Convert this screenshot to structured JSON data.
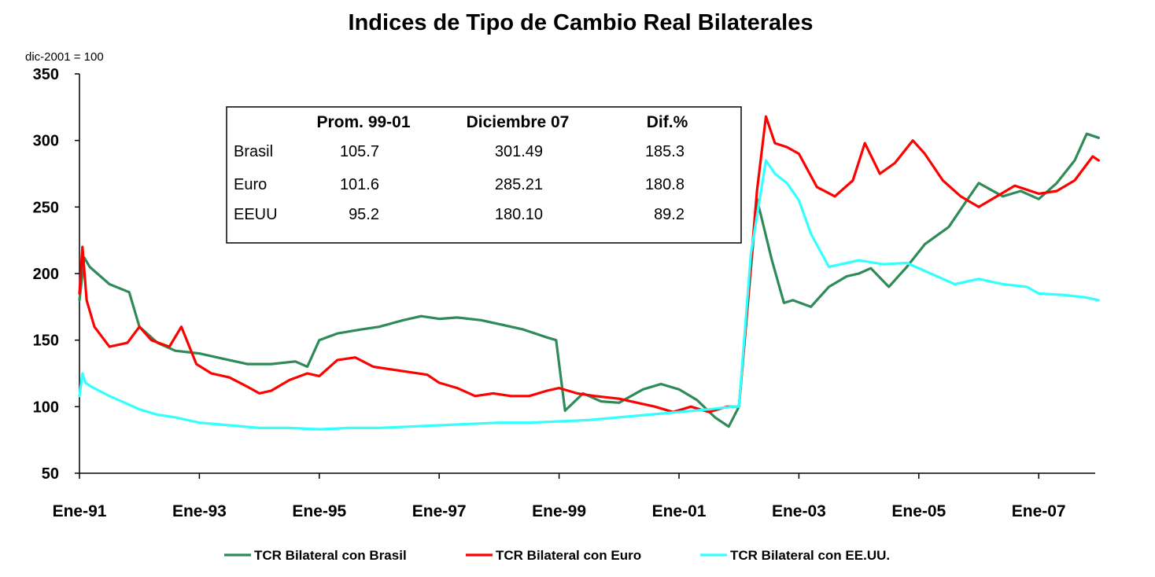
{
  "chart_data": {
    "type": "line",
    "title": "Indices de Tipo de Cambio Real Bilaterales",
    "base_note": "dic-2001 = 100",
    "ylim": [
      50,
      350
    ],
    "y_ticks": [
      "50",
      "100",
      "150",
      "200",
      "250",
      "300",
      "350"
    ],
    "x_ticks": [
      "Ene-91",
      "Ene-93",
      "Ene-95",
      "Ene-97",
      "Ene-99",
      "Ene-01",
      "Ene-03",
      "Ene-05",
      "Ene-07"
    ],
    "x_range_years": [
      1991.0,
      2008.0
    ],
    "colors": {
      "brasil": "#2e8b57",
      "euro": "#ff0000",
      "eeuu": "#33ffff"
    },
    "series": [
      {
        "key": "brasil",
        "name": "TCR Bilateral con Brasil",
        "x": [
          1991.0,
          1991.08,
          1991.17,
          1991.5,
          1991.83,
          1992.0,
          1992.3,
          1992.6,
          1993.0,
          1993.4,
          1993.8,
          1994.2,
          1994.6,
          1994.8,
          1995.0,
          1995.3,
          1995.7,
          1996.0,
          1996.4,
          1996.7,
          1997.0,
          1997.3,
          1997.7,
          1998.0,
          1998.4,
          1998.8,
          1998.95,
          1999.1,
          1999.4,
          1999.7,
          2000.0,
          2000.4,
          2000.7,
          2001.0,
          2001.3,
          2001.6,
          2001.83,
          2002.0,
          2002.3,
          2002.55,
          2002.75,
          2002.9,
          2003.2,
          2003.5,
          2003.8,
          2004.0,
          2004.2,
          2004.5,
          2004.8,
          2005.1,
          2005.5,
          2005.8,
          2006.0,
          2006.4,
          2006.7,
          2007.0,
          2007.3,
          2007.6,
          2007.8,
          2008.0
        ],
        "values": [
          180,
          212,
          205,
          192,
          186,
          160,
          148,
          142,
          140,
          136,
          132,
          132,
          134,
          130,
          150,
          155,
          158,
          160,
          165,
          168,
          166,
          167,
          165,
          162,
          158,
          152,
          150,
          97,
          110,
          104,
          103,
          113,
          117,
          113,
          105,
          92,
          85,
          100,
          256,
          210,
          178,
          180,
          175,
          190,
          198,
          200,
          204,
          190,
          205,
          222,
          235,
          255,
          268,
          258,
          262,
          256,
          268,
          285,
          305,
          302
        ]
      },
      {
        "key": "euro",
        "name": "TCR Bilateral con Euro",
        "x": [
          1991.0,
          1991.05,
          1991.12,
          1991.25,
          1991.5,
          1991.8,
          1992.0,
          1992.2,
          1992.5,
          1992.7,
          1992.95,
          1993.2,
          1993.5,
          1993.8,
          1994.0,
          1994.2,
          1994.5,
          1994.8,
          1995.0,
          1995.3,
          1995.6,
          1995.9,
          1996.2,
          1996.5,
          1996.8,
          1997.0,
          1997.3,
          1997.6,
          1997.9,
          1998.2,
          1998.5,
          1998.8,
          1999.0,
          1999.3,
          1999.6,
          2000.0,
          2000.3,
          2000.6,
          2000.9,
          2001.2,
          2001.5,
          2001.8,
          2002.0,
          2002.15,
          2002.3,
          2002.45,
          2002.6,
          2002.8,
          2003.0,
          2003.3,
          2003.6,
          2003.9,
          2004.1,
          2004.35,
          2004.6,
          2004.9,
          2005.1,
          2005.4,
          2005.7,
          2006.0,
          2006.3,
          2006.6,
          2007.0,
          2007.3,
          2007.6,
          2007.9,
          2008.0
        ],
        "values": [
          185,
          220,
          180,
          160,
          145,
          148,
          160,
          150,
          145,
          160,
          132,
          125,
          122,
          115,
          110,
          112,
          120,
          125,
          123,
          135,
          137,
          130,
          128,
          126,
          124,
          118,
          114,
          108,
          110,
          108,
          108,
          112,
          114,
          110,
          108,
          106,
          103,
          100,
          96,
          100,
          96,
          100,
          100,
          180,
          262,
          318,
          298,
          295,
          290,
          265,
          258,
          270,
          298,
          275,
          283,
          300,
          290,
          270,
          258,
          250,
          258,
          266,
          260,
          262,
          270,
          288,
          285
        ]
      },
      {
        "key": "eeuu",
        "name": "TCR Bilateral con EE.UU.",
        "x": [
          1991.0,
          1991.05,
          1991.1,
          1991.2,
          1991.5,
          1991.8,
          1992.0,
          1992.3,
          1992.6,
          1993.0,
          1993.5,
          1994.0,
          1994.5,
          1995.0,
          1995.5,
          1996.0,
          1996.5,
          1997.0,
          1997.5,
          1998.0,
          1998.5,
          1999.0,
          1999.5,
          2000.0,
          2000.5,
          2001.0,
          2001.5,
          2001.9,
          2002.0,
          2002.2,
          2002.45,
          2002.6,
          2002.8,
          2003.0,
          2003.2,
          2003.5,
          2003.8,
          2004.0,
          2004.4,
          2004.8,
          2005.2,
          2005.6,
          2006.0,
          2006.4,
          2006.8,
          2007.0,
          2007.4,
          2007.8,
          2008.0
        ],
        "values": [
          108,
          125,
          118,
          115,
          108,
          102,
          98,
          94,
          92,
          88,
          86,
          84,
          84,
          83,
          84,
          84,
          85,
          86,
          87,
          88,
          88,
          89,
          90,
          92,
          94,
          96,
          98,
          100,
          100,
          215,
          285,
          275,
          268,
          255,
          230,
          205,
          208,
          210,
          207,
          208,
          200,
          192,
          196,
          192,
          190,
          185,
          184,
          182,
          180
        ]
      }
    ],
    "summary_table": {
      "headers": [
        "",
        "Prom. 99-01",
        "Diciembre 07",
        "Dif.%"
      ],
      "rows": [
        [
          "Brasil",
          "105.7",
          "301.49",
          "185.3"
        ],
        [
          "Euro",
          "101.6",
          "285.21",
          "180.8"
        ],
        [
          "EEUU",
          "95.2",
          "180.10",
          "89.2"
        ]
      ]
    },
    "legend_placement": "bottom-center"
  }
}
